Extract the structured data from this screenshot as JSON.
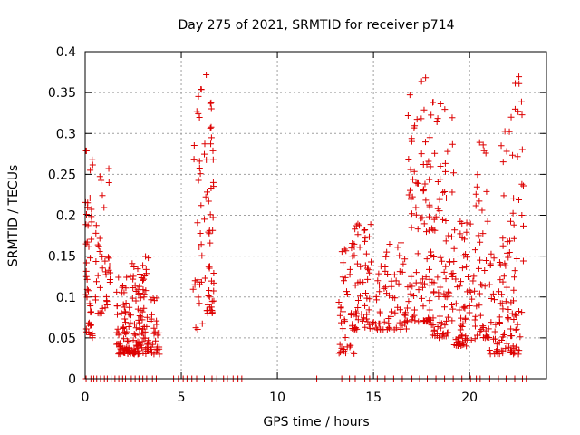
{
  "chart_data": {
    "type": "scatter",
    "title": "Day 275 of 2021, SRMTID for receiver p714",
    "xlabel": "GPS time / hours",
    "ylabel": "SRMTID / TECUs",
    "xlim": [
      0,
      24
    ],
    "ylim": [
      0,
      0.4
    ],
    "x_ticks": [
      0,
      5,
      10,
      15,
      20
    ],
    "x_tick_labels": [
      "0",
      "5",
      "10",
      "15",
      "20"
    ],
    "y_ticks": [
      0,
      0.05,
      0.1,
      0.15,
      0.2,
      0.25,
      0.3,
      0.35,
      0.4
    ],
    "y_tick_labels": [
      "0",
      "0.05",
      "0.1",
      "0.15",
      "0.2",
      "0.25",
      "0.3",
      "0.35",
      "0.4"
    ],
    "grid": true,
    "marker": "+",
    "color": "#dd0000",
    "clusters": [
      {
        "x": [
          0.0,
          0.4
        ],
        "y": [
          0.05,
          0.28
        ],
        "n": 45
      },
      {
        "x": [
          0.5,
          1.3
        ],
        "y": [
          0.08,
          0.27
        ],
        "n": 40
      },
      {
        "x": [
          1.6,
          2.4
        ],
        "y": [
          0.03,
          0.13
        ],
        "n": 70
      },
      {
        "x": [
          2.4,
          3.3
        ],
        "y": [
          0.03,
          0.15
        ],
        "n": 90
      },
      {
        "x": [
          3.3,
          3.9
        ],
        "y": [
          0.03,
          0.1
        ],
        "n": 30
      },
      {
        "x": [
          5.6,
          6.1
        ],
        "y": [
          0.06,
          0.36
        ],
        "n": 30
      },
      {
        "x": [
          6.2,
          6.7
        ],
        "y": [
          0.08,
          0.38
        ],
        "n": 50
      },
      {
        "x": [
          13.2,
          14.0
        ],
        "y": [
          0.03,
          0.17
        ],
        "n": 45
      },
      {
        "x": [
          14.0,
          15.0
        ],
        "y": [
          0.06,
          0.19
        ],
        "n": 55
      },
      {
        "x": [
          15.0,
          16.8
        ],
        "y": [
          0.06,
          0.17
        ],
        "n": 70
      },
      {
        "x": [
          16.8,
          18.0
        ],
        "y": [
          0.07,
          0.37
        ],
        "n": 90
      },
      {
        "x": [
          18.0,
          19.2
        ],
        "y": [
          0.05,
          0.34
        ],
        "n": 90
      },
      {
        "x": [
          19.2,
          20.3
        ],
        "y": [
          0.04,
          0.2
        ],
        "n": 70
      },
      {
        "x": [
          20.3,
          21.0
        ],
        "y": [
          0.05,
          0.3
        ],
        "n": 40
      },
      {
        "x": [
          21.0,
          21.6
        ],
        "y": [
          0.03,
          0.16
        ],
        "n": 30
      },
      {
        "x": [
          21.6,
          22.8
        ],
        "y": [
          0.03,
          0.37
        ],
        "n": 90
      }
    ],
    "zero_points_x": [
      0.05,
      0.3,
      0.45,
      0.6,
      0.8,
      1.0,
      1.15,
      1.35,
      1.55,
      1.75,
      1.95,
      2.1,
      2.4,
      2.6,
      2.8,
      3.0,
      3.2,
      3.5,
      3.7,
      4.6,
      4.85,
      5.1,
      5.3,
      5.55,
      5.8,
      6.2,
      6.6,
      6.85,
      7.2,
      7.4,
      7.7,
      7.95,
      8.15,
      12.05,
      13.35,
      13.75,
      14.05,
      14.55,
      14.8,
      15.2,
      15.6,
      16.05,
      16.5,
      17.0,
      17.4,
      17.8,
      18.25,
      18.7,
      19.15,
      19.6,
      20.05,
      20.35,
      20.55,
      21.05,
      21.5,
      21.9,
      22.35,
      22.75,
      22.95
    ]
  }
}
